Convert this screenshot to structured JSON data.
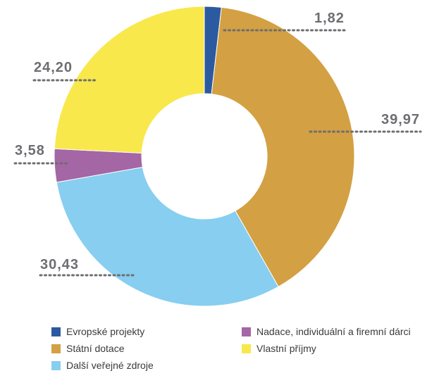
{
  "chart_data": {
    "type": "pie",
    "hole": true,
    "start": "top",
    "slices": [
      {
        "label": "Evropské projekty",
        "value": 1.82,
        "value_text": "1,82",
        "color": "#2c5aa0"
      },
      {
        "label": "Státní dotace",
        "value": 39.97,
        "value_text": "39,97",
        "color": "#d3a043"
      },
      {
        "label": "Další veřejné zdroje",
        "value": 30.43,
        "value_text": "30,43",
        "color": "#87cef0"
      },
      {
        "label": "Nadace, individuální a firemní dárci",
        "value": 3.58,
        "value_text": "3,58",
        "color": "#a466a4"
      },
      {
        "label": "Vlastní příjmy",
        "value": 24.2,
        "value_text": "24,20",
        "color": "#f8e84b"
      }
    ],
    "legend": {
      "placement": "bottom"
    }
  }
}
